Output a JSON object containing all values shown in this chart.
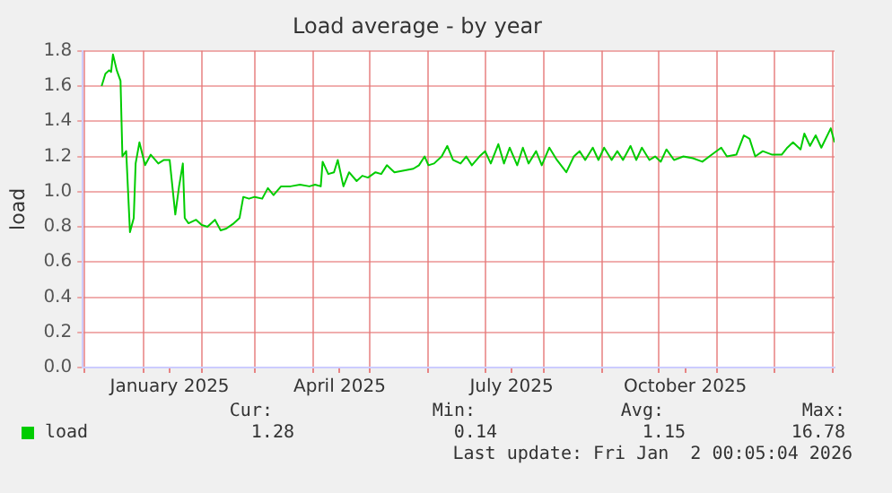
{
  "chart_data": {
    "type": "line",
    "title": "Load average - by year",
    "ylabel": "load",
    "x": [
      "2024-12-10",
      "2024-12-12",
      "2024-12-14",
      "2024-12-15",
      "2024-12-16",
      "2024-12-18",
      "2024-12-20",
      "2024-12-21",
      "2024-12-23",
      "2024-12-25",
      "2024-12-27",
      "2024-12-28",
      "2024-12-30",
      "2025-01-02",
      "2025-01-05",
      "2025-01-09",
      "2025-01-12",
      "2025-01-15",
      "2025-01-18",
      "2025-01-20",
      "2025-01-22",
      "2025-01-23",
      "2025-01-25",
      "2025-01-29",
      "2025-02-01",
      "2025-02-04",
      "2025-02-08",
      "2025-02-11",
      "2025-02-14",
      "2025-02-18",
      "2025-02-21",
      "2025-02-23",
      "2025-02-26",
      "2025-03-01",
      "2025-03-05",
      "2025-03-08",
      "2025-03-11",
      "2025-03-15",
      "2025-03-20",
      "2025-03-25",
      "2025-03-30",
      "2025-04-02",
      "2025-04-05",
      "2025-04-06",
      "2025-04-09",
      "2025-04-12",
      "2025-04-14",
      "2025-04-17",
      "2025-04-20",
      "2025-04-24",
      "2025-04-27",
      "2025-04-30",
      "2025-05-04",
      "2025-05-07",
      "2025-05-10",
      "2025-05-14",
      "2025-05-19",
      "2025-05-24",
      "2025-05-27",
      "2025-05-30",
      "2025-06-01",
      "2025-06-04",
      "2025-06-08",
      "2025-06-11",
      "2025-06-14",
      "2025-06-18",
      "2025-06-21",
      "2025-06-24",
      "2025-06-28",
      "2025-07-01",
      "2025-07-04",
      "2025-07-08",
      "2025-07-11",
      "2025-07-14",
      "2025-07-18",
      "2025-07-21",
      "2025-07-24",
      "2025-07-28",
      "2025-07-31",
      "2025-08-04",
      "2025-08-08",
      "2025-08-13",
      "2025-08-17",
      "2025-08-20",
      "2025-08-23",
      "2025-08-27",
      "2025-08-30",
      "2025-09-02",
      "2025-09-06",
      "2025-09-09",
      "2025-09-12",
      "2025-09-16",
      "2025-09-19",
      "2025-09-22",
      "2025-09-26",
      "2025-09-29",
      "2025-10-02",
      "2025-10-05",
      "2025-10-09",
      "2025-10-14",
      "2025-10-19",
      "2025-10-24",
      "2025-10-29",
      "2025-11-03",
      "2025-11-06",
      "2025-11-11",
      "2025-11-15",
      "2025-11-18",
      "2025-11-21",
      "2025-11-25",
      "2025-11-30",
      "2025-12-05",
      "2025-12-08",
      "2025-12-11",
      "2025-12-15",
      "2025-12-17",
      "2025-12-20",
      "2025-12-23",
      "2025-12-26",
      "2025-12-31",
      "2026-01-02"
    ],
    "series": [
      {
        "name": "load",
        "color": "#00cc00",
        "values": [
          1.6,
          1.67,
          1.69,
          1.68,
          1.78,
          1.69,
          1.63,
          1.2,
          1.23,
          0.77,
          0.85,
          1.16,
          1.28,
          1.15,
          1.21,
          1.16,
          1.18,
          1.18,
          0.87,
          1.03,
          1.16,
          0.85,
          0.82,
          0.84,
          0.81,
          0.8,
          0.84,
          0.78,
          0.79,
          0.82,
          0.85,
          0.97,
          0.96,
          0.97,
          0.96,
          1.02,
          0.98,
          1.03,
          1.03,
          1.04,
          1.03,
          1.04,
          1.03,
          1.17,
          1.1,
          1.11,
          1.18,
          1.03,
          1.11,
          1.06,
          1.09,
          1.08,
          1.11,
          1.1,
          1.15,
          1.11,
          1.12,
          1.13,
          1.15,
          1.2,
          1.15,
          1.16,
          1.2,
          1.26,
          1.18,
          1.16,
          1.2,
          1.15,
          1.2,
          1.23,
          1.16,
          1.27,
          1.16,
          1.25,
          1.15,
          1.25,
          1.16,
          1.23,
          1.15,
          1.25,
          1.18,
          1.11,
          1.2,
          1.23,
          1.18,
          1.25,
          1.18,
          1.25,
          1.18,
          1.23,
          1.18,
          1.26,
          1.18,
          1.25,
          1.18,
          1.2,
          1.17,
          1.24,
          1.18,
          1.2,
          1.19,
          1.17,
          1.21,
          1.25,
          1.2,
          1.21,
          1.32,
          1.3,
          1.2,
          1.23,
          1.21,
          1.21,
          1.25,
          1.28,
          1.24,
          1.33,
          1.26,
          1.32,
          1.25,
          1.36,
          1.28
        ]
      }
    ],
    "xlim": [
      "2024-11-30",
      "2026-01-02"
    ],
    "xticks": [
      {
        "value": "2024-12-01",
        "label": null
      },
      {
        "value": "2025-01-01",
        "label": null
      },
      {
        "value": "2025-01-15",
        "label": "January 2025"
      },
      {
        "value": "2025-02-01",
        "label": null
      },
      {
        "value": "2025-03-01",
        "label": null
      },
      {
        "value": "2025-04-01",
        "label": null
      },
      {
        "value": "2025-04-15",
        "label": "April 2025"
      },
      {
        "value": "2025-05-01",
        "label": null
      },
      {
        "value": "2025-06-01",
        "label": null
      },
      {
        "value": "2025-07-01",
        "label": null
      },
      {
        "value": "2025-07-15",
        "label": "July 2025"
      },
      {
        "value": "2025-08-01",
        "label": null
      },
      {
        "value": "2025-09-01",
        "label": null
      },
      {
        "value": "2025-10-01",
        "label": null
      },
      {
        "value": "2025-10-15",
        "label": "October 2025"
      },
      {
        "value": "2025-11-01",
        "label": null
      },
      {
        "value": "2025-12-01",
        "label": null
      },
      {
        "value": "2026-01-01",
        "label": null
      }
    ],
    "ylim": [
      0,
      1.8
    ],
    "yticks": [
      {
        "value": 0,
        "label": "0.0"
      },
      {
        "value": 0.2,
        "label": "0.2"
      },
      {
        "value": 0.4,
        "label": "0.4"
      },
      {
        "value": 0.6,
        "label": "0.6"
      },
      {
        "value": 0.8,
        "label": "0.8"
      },
      {
        "value": 1,
        "label": "1.0"
      },
      {
        "value": 1.2,
        "label": "1.2"
      },
      {
        "value": 1.4,
        "label": "1.4"
      },
      {
        "value": 1.6,
        "label": "1.6"
      },
      {
        "value": 1.8,
        "label": "1.8"
      }
    ],
    "grid": true,
    "legend": "bottom",
    "marker": "none",
    "line_style": "solid",
    "annotations": [
      "Cur:",
      "Min:",
      "Avg:",
      "Max:",
      "1.28",
      "0.14",
      "1.15",
      "16.78",
      "Last update: Fri Jan  2 00:05:04 2026"
    ]
  }
}
